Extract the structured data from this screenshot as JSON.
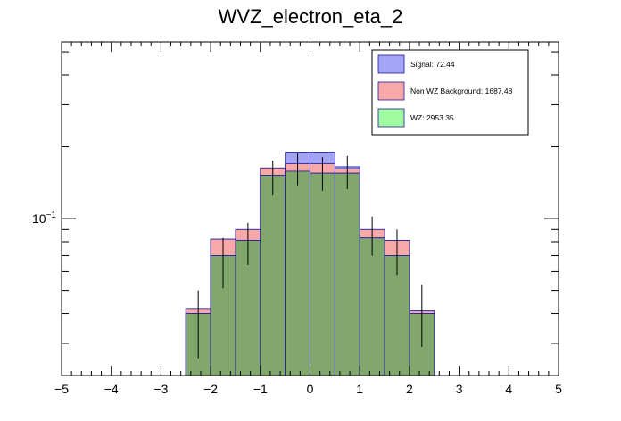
{
  "chart_data": {
    "type": "bar",
    "subtype": "stacked-histogram-log",
    "title": "WVZ_electron_eta_2",
    "xlabel": "",
    "ylabel": "",
    "xlim": [
      -5,
      5
    ],
    "ylim": [
      0.022,
      0.55
    ],
    "yscale": "log",
    "ytick_label": "10^{-1}",
    "ytick_value": 0.1,
    "xticks": [
      -5,
      -4,
      -3,
      -2,
      -1,
      0,
      1,
      2,
      3,
      4,
      5
    ],
    "bin_edges": [
      -5.0,
      -4.5,
      -4.0,
      -3.5,
      -3.0,
      -2.5,
      -2.0,
      -1.5,
      -1.0,
      -0.5,
      0.0,
      0.5,
      1.0,
      1.5,
      2.0,
      2.5,
      3.0,
      3.5,
      4.0,
      4.5,
      5.0
    ],
    "series": [
      {
        "name": "WZ",
        "legend": "WZ: 2953.35",
        "color": "#a0fba0",
        "values": [
          0,
          0,
          0,
          0,
          0,
          0.04,
          0.07,
          0.081,
          0.152,
          0.158,
          0.155,
          0.155,
          0.083,
          0.07,
          0.04,
          0,
          0,
          0,
          0,
          0
        ]
      },
      {
        "name": "Non WZ Background",
        "legend": "Non WZ Background: 1687.48",
        "color": "#f9a8a8",
        "values": [
          0,
          0,
          0,
          0,
          0,
          0.042,
          0.082,
          0.09,
          0.163,
          0.17,
          0.17,
          0.162,
          0.09,
          0.081,
          0.041,
          0,
          0,
          0,
          0,
          0
        ]
      },
      {
        "name": "Signal",
        "legend": "Signal: 72.44",
        "color": "#a4a4f6",
        "values": [
          0,
          0,
          0,
          0,
          0,
          0.042,
          0.082,
          0.09,
          0.163,
          0.19,
          0.19,
          0.165,
          0.09,
          0.081,
          0.041,
          0,
          0,
          0,
          0,
          0
        ]
      }
    ],
    "data_points": {
      "x": [
        -2.25,
        -1.75,
        -1.25,
        -0.75,
        -0.25,
        0.25,
        0.75,
        1.25,
        1.75,
        2.25
      ],
      "y": [
        0.038,
        0.067,
        0.08,
        0.15,
        0.163,
        0.156,
        0.158,
        0.086,
        0.074,
        0.041
      ],
      "err": [
        0.012,
        0.016,
        0.016,
        0.025,
        0.025,
        0.025,
        0.025,
        0.016,
        0.016,
        0.012
      ]
    },
    "legend_position": "top-right",
    "overlap_color": "#7fa068"
  }
}
